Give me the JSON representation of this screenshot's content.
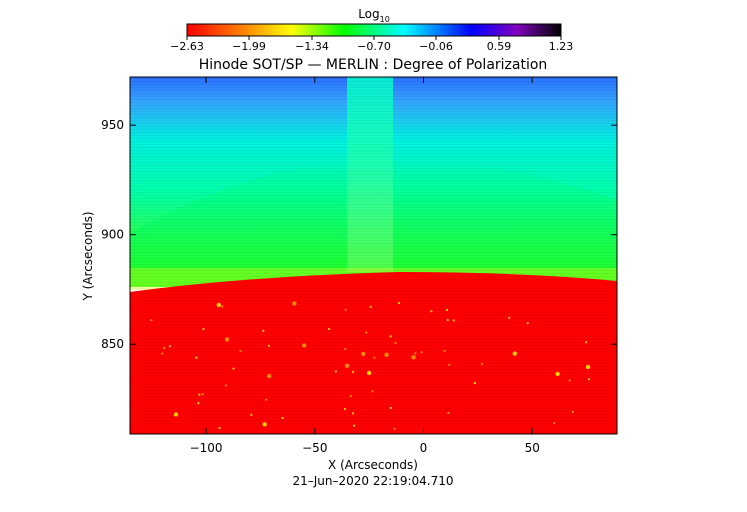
{
  "chart_data": {
    "type": "heatmap",
    "title": "Hinode SOT/SP — MERLIN : Degree of Polarization",
    "xlabel": "X (Arcseconds)",
    "ylabel": "Y (Arcseconds)",
    "xlim": [
      -135,
      89
    ],
    "ylim": [
      809,
      972
    ],
    "xticks": [
      -100,
      -50,
      0,
      50
    ],
    "xtick_labels": [
      "−100",
      "−50",
      "0",
      "50"
    ],
    "yticks": [
      850,
      900,
      950
    ],
    "ytick_labels": [
      "850",
      "900",
      "950"
    ],
    "colorbar": {
      "label_base": "Log",
      "label_subscript": "10",
      "ticks": [
        -2.63,
        -1.99,
        -1.34,
        -0.7,
        -0.06,
        0.59,
        1.23
      ],
      "tick_labels": [
        "−2.63",
        "−1.99",
        "−1.34",
        "−0.70",
        "−0.06",
        "0.59",
        "1.23"
      ],
      "colormap": "rainbow (red → yellow → green → cyan → blue → purple → black)"
    },
    "timestamp": "21–Jun–2020 22:19:04.710",
    "limb": {
      "description": "solar limb separating on-disk (low polarization, red) from off-limb region (green to blue)",
      "points": [
        [
          -135,
          875
        ],
        [
          -100,
          880
        ],
        [
          -50,
          883
        ],
        [
          0,
          884
        ],
        [
          50,
          883
        ],
        [
          89,
          880
        ]
      ]
    },
    "features": [
      {
        "name": "vertical bright streak above limb",
        "x_range": [
          -32,
          -13
        ]
      }
    ]
  },
  "colors": {
    "red": "#ff0000",
    "orange": "#ff8c00",
    "yellow": "#ffff00",
    "green": "#00ff00",
    "cyan": "#00ffff",
    "blue": "#0000ff",
    "purple": "#8000c0",
    "black": "#000000",
    "disk": "#ff0000",
    "off_limb_low": "#00ff00",
    "off_limb_mid": "#00ffaa",
    "off_limb_high": "#2a6fff"
  }
}
